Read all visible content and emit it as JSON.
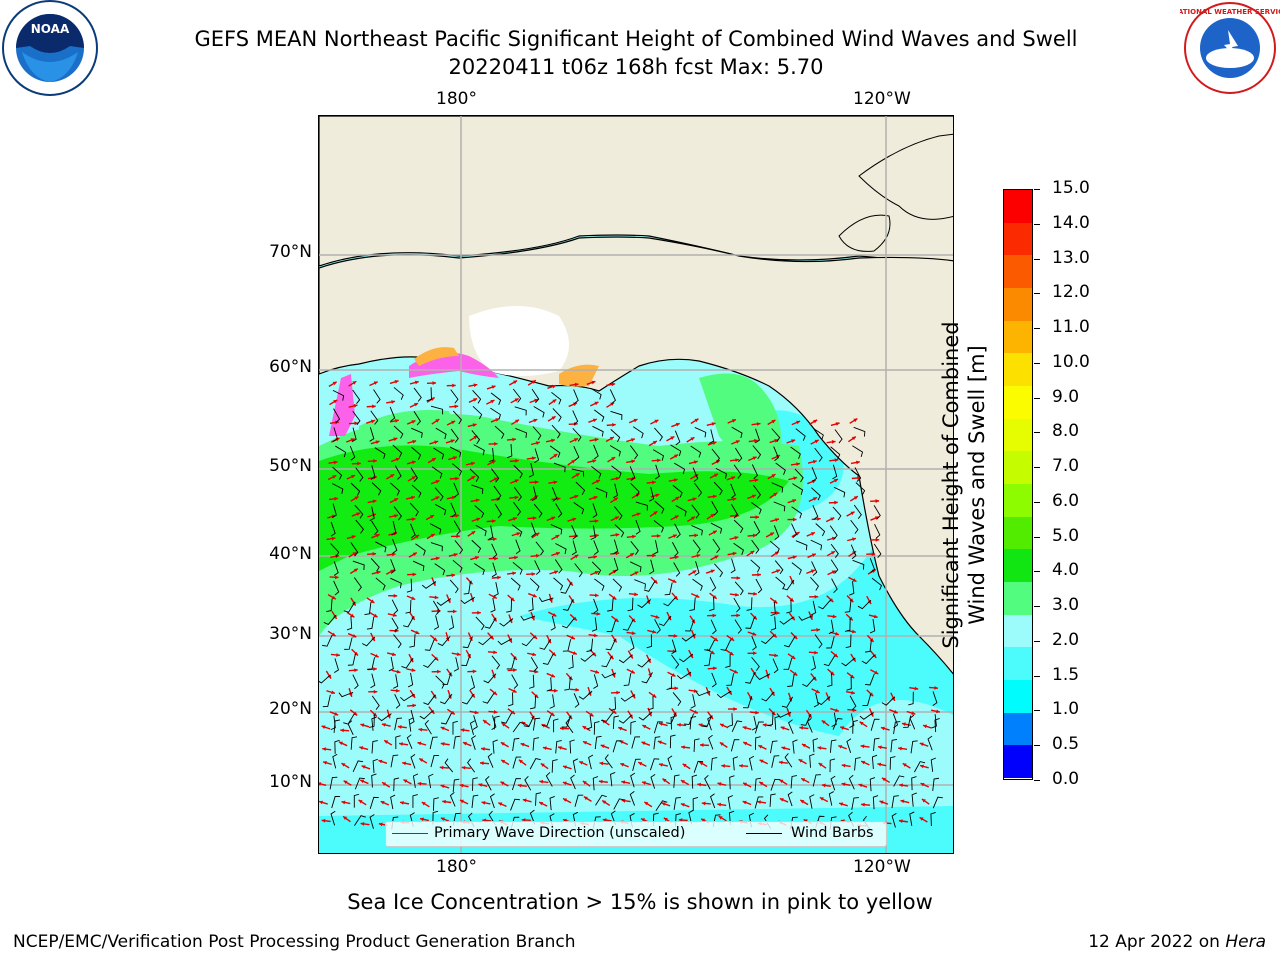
{
  "title": {
    "line1": "GEFS MEAN Northeast Pacific Significant Height of Combined Wind Waves and Swell",
    "line2": "20220411 t06z 168h fcst   Max: 5.70"
  },
  "map": {
    "lon_labels_top": [
      "180°",
      "120°W"
    ],
    "lon_labels_bottom": [
      "180°",
      "120°W"
    ],
    "lat_labels": [
      "70°N",
      "60°N",
      "50°N",
      "40°N",
      "30°N",
      "20°N",
      "10°N"
    ],
    "colors": {
      "land": "#efecdb",
      "ocean_low": "#9cfcfc",
      "ocean_mid": "#4cfcfc",
      "wave_30": "#52fc7e",
      "wave_40": "#12ec12",
      "ice_pink": "#fc62e9",
      "ice_orange": "#fcb140",
      "gridline": "#b0b0b0",
      "wave_arrow": "#e60000",
      "wind_barb": "#000000"
    }
  },
  "legend": {
    "items": [
      {
        "label": "Primary Wave Direction (unscaled)",
        "color": "#e60000"
      },
      {
        "label": "Wind Barbs",
        "color": "#000000"
      }
    ]
  },
  "colorbar": {
    "title_line1": "Significant Height of Combined",
    "title_line2": "Wind Waves and Swell [m]",
    "ticks": [
      "15.0",
      "14.0",
      "13.0",
      "12.0",
      "11.0",
      "10.0",
      "9.0",
      "8.0",
      "7.0",
      "6.0",
      "5.0",
      "4.0",
      "3.0",
      "2.0",
      "1.5",
      "1.0",
      "0.5",
      "0.0"
    ],
    "colors_top_to_bottom": [
      "#fc0000",
      "#fc2a00",
      "#fc5a00",
      "#fc8a00",
      "#fcb400",
      "#fce000",
      "#fcfc00",
      "#e6fc00",
      "#c6fc00",
      "#8efc00",
      "#52ec00",
      "#12e612",
      "#52fc7e",
      "#9cfcfc",
      "#4cfcfc",
      "#00fcfc",
      "#0080fc",
      "#0000fc"
    ]
  },
  "notes": {
    "ice": "Sea Ice Concentration > 15% is shown in pink to yellow",
    "footer_left": "NCEP/EMC/Verification Post Processing Product Generation Branch",
    "footer_date": "12 Apr 2022 on",
    "footer_machine": "Hera"
  },
  "logos": {
    "noaa_text": "NOAA",
    "nws_text": "NATIONAL WEATHER SERVICE"
  }
}
